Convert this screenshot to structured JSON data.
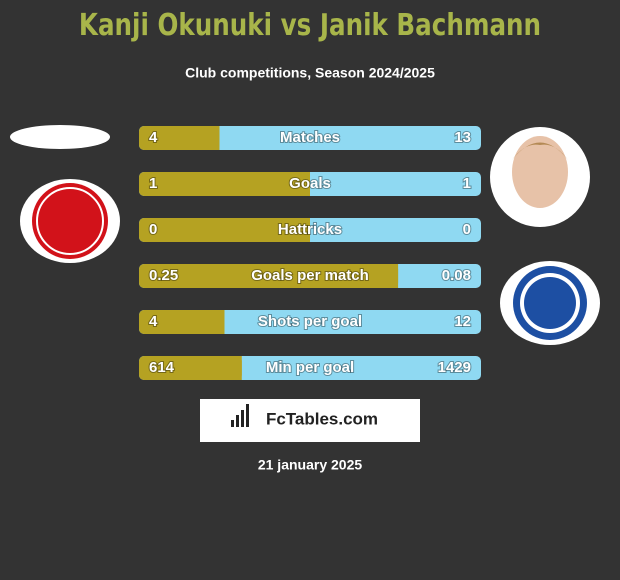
{
  "header": {
    "title": "Kanji Okunuki vs Janik Bachmann",
    "subtitle": "Club competitions, Season 2024/2025"
  },
  "rows": [
    {
      "label": "Matches",
      "left": 4,
      "right": 13
    },
    {
      "label": "Goals",
      "left": 1,
      "right": 1
    },
    {
      "label": "Hattricks",
      "left": 0,
      "right": 0
    },
    {
      "label": "Goals per match",
      "left": 0.25,
      "right": 0.08
    },
    {
      "label": "Shots per goal",
      "left": 4,
      "right": 12
    },
    {
      "label": "Min per goal",
      "left": 614,
      "right": 1429
    }
  ],
  "colors": {
    "left": "#b5a222",
    "right": "#8fd9f2"
  },
  "footer": {
    "brand": "FcTables.com",
    "date": "21 january 2025"
  }
}
